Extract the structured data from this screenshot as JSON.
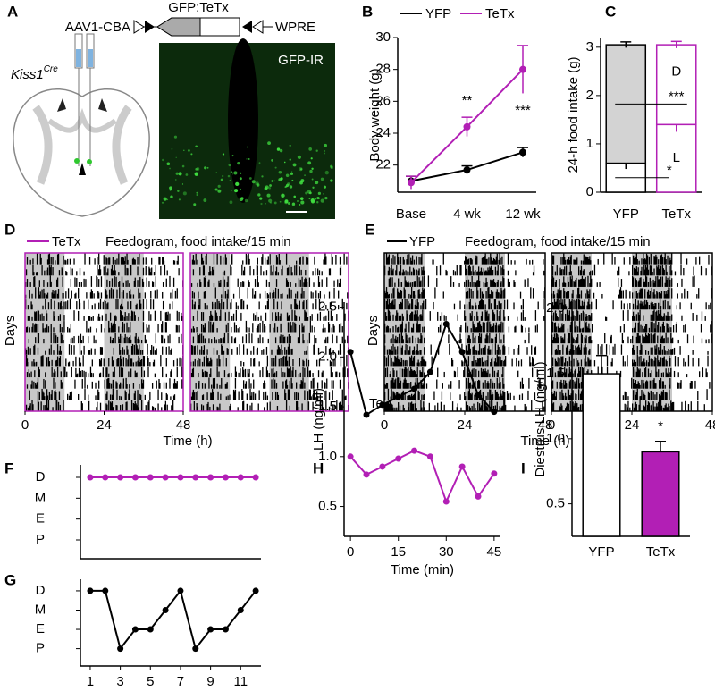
{
  "panel_labels": [
    "A",
    "B",
    "C",
    "D",
    "E",
    "F",
    "G",
    "H",
    "I"
  ],
  "diagram": {
    "construct": [
      "AAV1-CBA",
      "GFP:TeTx",
      "WPRE"
    ],
    "mouse_line": "Kiss1",
    "mouse_line_sup": "Cre",
    "image_label": "GFP-IR"
  },
  "feedograms": [
    {
      "legend": "TeTx",
      "legend_color": "#b21fb5",
      "title": "Feedogram, food intake/15 min",
      "ylabel": "Days",
      "xlabel": "Time (h)",
      "xlim": [
        0,
        48
      ],
      "xticks": [
        [
          0,
          24,
          48
        ]
      ],
      "border_color": "#b21fb5"
    },
    {
      "legend": "YFP",
      "legend_color": "#000000",
      "title": "Feedogram, food intake/15 min",
      "ylabel": "Days",
      "xlabel": "Time (h)",
      "xlim": [
        0,
        48
      ],
      "xticks": [
        [
          0,
          24,
          48
        ],
        [
          0,
          24,
          48
        ]
      ],
      "border_color": "#000000",
      "note": "Te"
    }
  ],
  "chart_data": [
    {
      "type": "line",
      "ylabel": "Body weight (g)",
      "categories": [
        "Base",
        "4 wk",
        "12 wk"
      ],
      "series": [
        {
          "name": "YFP",
          "color": "#000000",
          "values": [
            21.0,
            21.7,
            22.8
          ],
          "errors": [
            0.3,
            0.25,
            0.3
          ]
        },
        {
          "name": "TeTx",
          "color": "#b21fb5",
          "values": [
            20.9,
            24.4,
            28.0
          ],
          "errors": [
            0.4,
            0.6,
            1.5
          ]
        }
      ],
      "ylim": [
        20.3,
        30
      ],
      "yticks": [
        22,
        24,
        26,
        28,
        30
      ],
      "annotations": [
        "**",
        "***"
      ]
    },
    {
      "type": "stacked_bar",
      "ylabel": "24-h food intake (g)",
      "categories": [
        "YFP",
        "TeTx"
      ],
      "edgecolors": [
        "#000000",
        "#b21fb5"
      ],
      "series": [
        {
          "name": "L",
          "colors": [
            "#ffffff",
            "#ffffff"
          ],
          "values": [
            0.6,
            1.4
          ],
          "errors": [
            0.12,
            0.15
          ]
        },
        {
          "name": "D",
          "colors": [
            "#d3d3d3",
            "#ffffff"
          ],
          "values": [
            2.45,
            1.65
          ],
          "errors": [
            0.06,
            0.07
          ]
        }
      ],
      "ylim": [
        0,
        3.2
      ],
      "yticks": [
        0,
        1,
        2,
        3
      ],
      "annotations": [
        "***",
        "*"
      ]
    },
    {
      "type": "line",
      "x": [
        1,
        2,
        3,
        4,
        5,
        6,
        7,
        8,
        9,
        10,
        11,
        12
      ],
      "values": [
        4,
        4,
        4,
        4,
        4,
        4,
        4,
        4,
        4,
        4,
        4,
        4
      ],
      "color": "#b21fb5",
      "xlim": [
        0.35,
        12.35
      ],
      "ylim": [
        0.1,
        4.6
      ],
      "yticks": [
        {
          "value": 1,
          "label": "P"
        },
        {
          "value": 2,
          "label": "E"
        },
        {
          "value": 3,
          "label": "M"
        },
        {
          "value": 4,
          "label": "D"
        }
      ]
    },
    {
      "type": "line",
      "x": [
        1,
        2,
        3,
        4,
        5,
        6,
        7,
        8,
        9,
        10,
        11,
        12
      ],
      "values": [
        4,
        4,
        1,
        2,
        2,
        3,
        4,
        1,
        2,
        2,
        3,
        4
      ],
      "color": "#000000",
      "xlim": [
        0.35,
        12.35
      ],
      "ylim": [
        0.1,
        4.6
      ],
      "xticks": [
        1,
        3,
        5,
        7,
        9,
        11
      ],
      "yticks": [
        {
          "value": 1,
          "label": "P"
        },
        {
          "value": 2,
          "label": "E"
        },
        {
          "value": 3,
          "label": "M"
        },
        {
          "value": 4,
          "label": "D"
        }
      ]
    },
    {
      "type": "line",
      "xlabel": "Time (min)",
      "ylabel": "LH (ng/ml)",
      "x": [
        0,
        5,
        10,
        15,
        20,
        25,
        30,
        35,
        40,
        45
      ],
      "series": [
        {
          "color": "#000000",
          "values": [
            2.05,
            1.42,
            1.52,
            1.6,
            1.68,
            1.85,
            2.33,
            2.05,
            1.62,
            1.45
          ]
        },
        {
          "color": "#b21fb5",
          "values": [
            1.0,
            0.82,
            0.9,
            0.98,
            1.06,
            1.0,
            0.55,
            0.9,
            0.6,
            0.83
          ]
        }
      ],
      "xlim": [
        -2,
        47
      ],
      "ylim": [
        0.2,
        2.55
      ],
      "xticks": [
        0,
        15,
        30,
        45
      ],
      "yticks": [
        0.5,
        {
          "value": 1,
          "label": "1.0"
        },
        1.5,
        {
          "value": 2,
          "label": "2.0"
        },
        2.5
      ]
    },
    {
      "type": "bar",
      "ylabel": "Diestrus LH (ng/ml)",
      "categories": [
        "YFP",
        "TeTx"
      ],
      "values": [
        1.5,
        0.9
      ],
      "errors": [
        0.14,
        0.08
      ],
      "colors": [
        "#ffffff",
        "#b21fb5"
      ],
      "edgecolor": "#000000",
      "ylim": [
        0.25,
        2.05
      ],
      "yticks": [
        0.5,
        {
          "value": 1,
          "label": "1.0"
        },
        1.5,
        {
          "value": 2,
          "label": "2.0"
        }
      ],
      "annotations": [
        "*"
      ]
    }
  ]
}
